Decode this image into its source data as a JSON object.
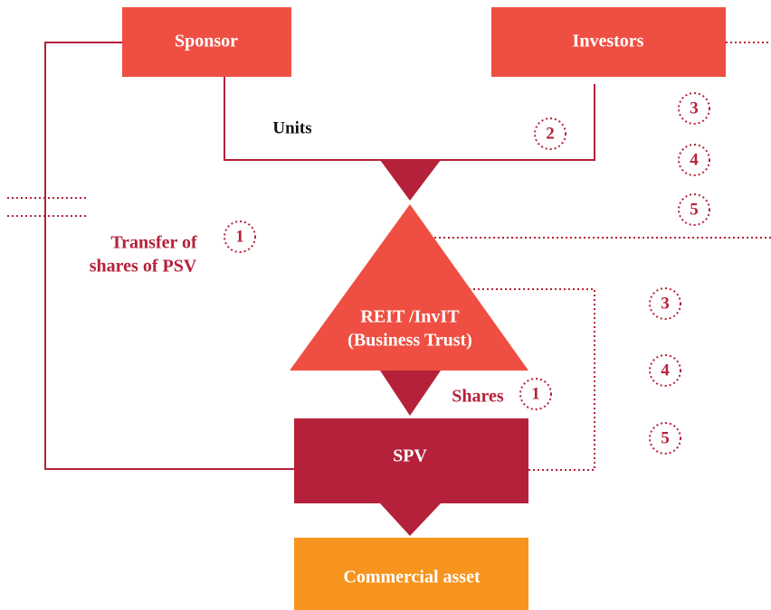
{
  "nodes": [
    {
      "label": "Sponsor"
    },
    {
      "label": "Investors"
    },
    {
      "label": [
        "REIT /InvIT",
        "(Business Trust)"
      ]
    },
    {
      "label": "SPV"
    },
    {
      "label": "Commercial asset"
    }
  ],
  "labels": [
    {
      "text": "Units"
    },
    {
      "text": [
        "Transfer of",
        "shares of PSV"
      ]
    },
    {
      "text": "Shares"
    }
  ],
  "markers": [
    "2",
    "1",
    "1",
    "3",
    "4",
    "5",
    "3",
    "4",
    "5"
  ]
}
